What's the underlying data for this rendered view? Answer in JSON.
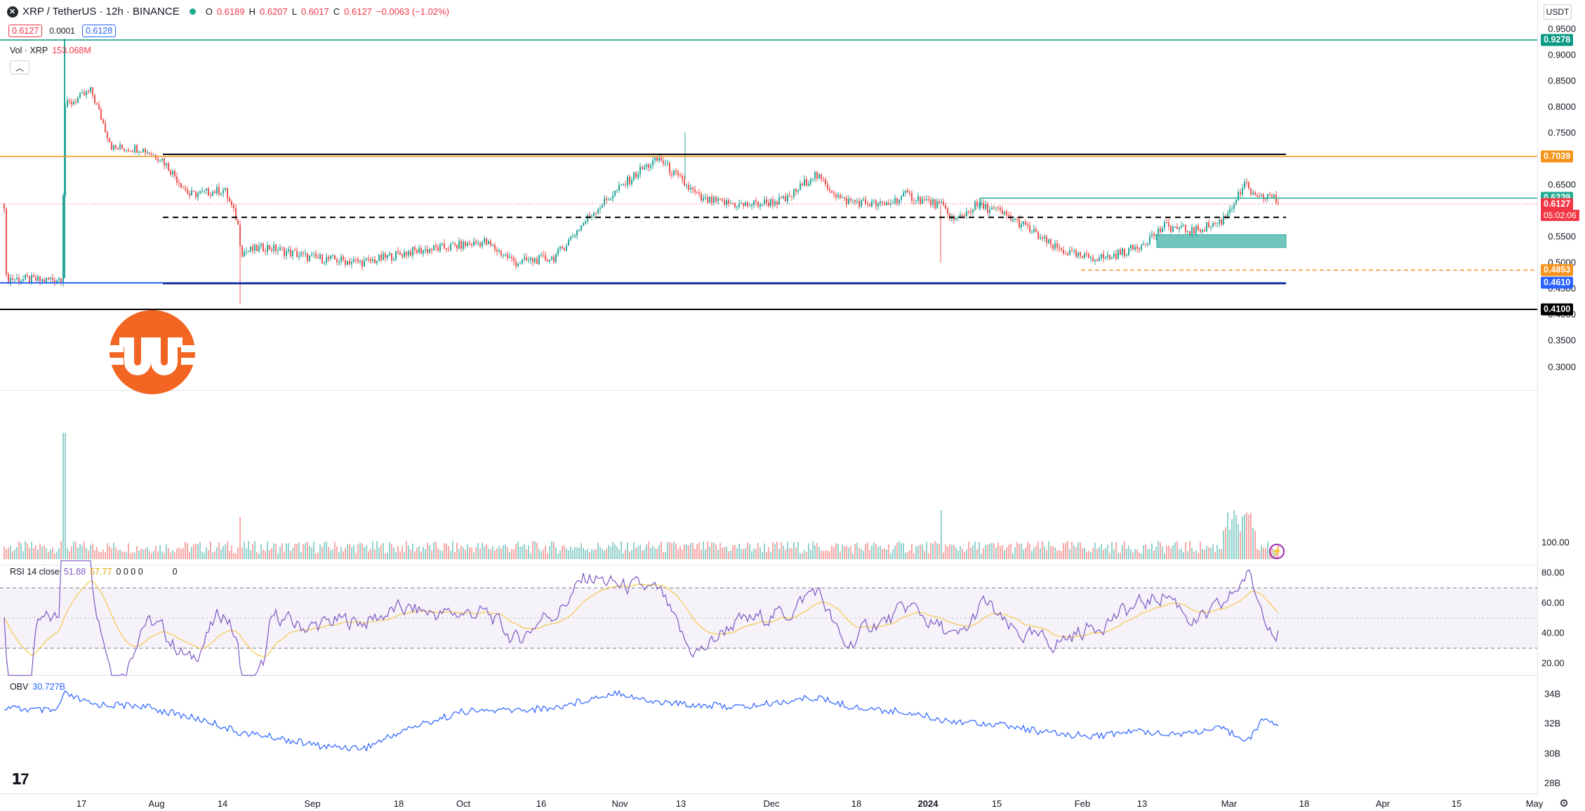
{
  "symbol": {
    "title": "XRP / TetherUS · 12h · BINANCE",
    "open_label": "O",
    "open": "0.6189",
    "high_label": "H",
    "high": "0.6207",
    "low_label": "L",
    "low": "0.6017",
    "close_label": "C",
    "close": "0.6127",
    "change": "−0.0063 (−1.02%)",
    "bid": "0.6127",
    "spread": "0.0001",
    "ask": "0.6128"
  },
  "volume_legend": {
    "label": "Vol · XRP",
    "value": "153.068M"
  },
  "currency_button": "USDT",
  "price_axis": {
    "ticks": [
      "0.9500",
      "0.9000",
      "0.8500",
      "0.8000",
      "0.7500",
      "0.6500",
      "0.5500",
      "0.5000",
      "0.4500",
      "0.4000",
      "0.3500",
      "0.3000"
    ],
    "tags": [
      {
        "value": "0.9278",
        "color": "#089981"
      },
      {
        "value": "0.7039",
        "color": "#f7931a"
      },
      {
        "value": "0.6239",
        "color": "#22ab94"
      },
      {
        "value": "0.6127",
        "color": "#f23645"
      },
      {
        "value": "0.4853",
        "color": "#f7931a"
      },
      {
        "value": "0.4610",
        "color": "#2962ff"
      },
      {
        "value": "0.4100",
        "color": "#000000"
      }
    ],
    "countdown": "05:02:06"
  },
  "rsi": {
    "label": "RSI 14 close",
    "value": "51.88",
    "ma": "57.77",
    "extra": "0 0 0 0",
    "extra2": "0",
    "ticks": [
      "100.00",
      "80.00",
      "60.00",
      "40.00",
      "20.00"
    ],
    "colors": {
      "line": "#7e57c2",
      "ma": "#f7c948"
    }
  },
  "obv": {
    "label": "OBV",
    "value": "30.727B",
    "ticks": [
      "34B",
      "32B",
      "30B",
      "28B"
    ],
    "color": "#2962ff"
  },
  "time_axis": [
    "17",
    "Aug",
    "14",
    "Sep",
    "18",
    "Oct",
    "16",
    "Nov",
    "13",
    "Dec",
    "18",
    "2024",
    "15",
    "Feb",
    "13",
    "Mar",
    "18",
    "Apr",
    "15",
    "May"
  ],
  "icons": [
    "tradingview-logo-icon",
    "collapse-icon",
    "replay-icon",
    "settings-icon",
    "brand-logo-icon"
  ],
  "colors": {
    "up": "#26a69a",
    "down": "#ef5350",
    "resistance": "#000000",
    "orange": "#f7931a",
    "support": "#2962ff"
  },
  "chart_data": {
    "type": "candlestick",
    "title": "XRP / TetherUS · 12h · BINANCE",
    "x": [
      "Jul 17",
      "Aug",
      "Aug 14",
      "Sep",
      "Sep 18",
      "Oct",
      "Oct 16",
      "Nov",
      "Nov 13",
      "Dec",
      "Dec 18",
      "2024",
      "Jan 15",
      "Feb",
      "Feb 13",
      "Mar"
    ],
    "close_series": [
      0.47,
      0.74,
      0.7,
      0.66,
      0.52,
      0.5,
      0.49,
      0.52,
      0.5,
      0.69,
      0.62,
      0.61,
      0.62,
      0.61,
      0.59,
      0.53,
      0.51,
      0.55,
      0.56,
      0.64,
      0.6127
    ],
    "ylim": [
      0.27,
      0.96
    ],
    "levels": [
      0.9278,
      0.7039,
      0.6239,
      0.4853,
      0.461,
      0.41
    ],
    "last_price": 0.6127,
    "rsi_last": 51.88,
    "obv_last": "30.727B"
  }
}
